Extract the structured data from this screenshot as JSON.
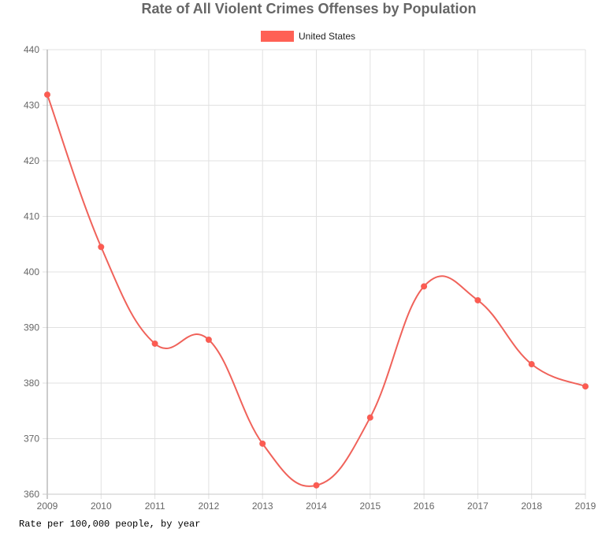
{
  "chart_data": {
    "type": "line",
    "title": "Rate of All Violent Crimes Offenses by Population",
    "x": [
      "2009",
      "2010",
      "2011",
      "2012",
      "2013",
      "2014",
      "2015",
      "2016",
      "2017",
      "2018",
      "2019"
    ],
    "series": [
      {
        "name": "United States",
        "color": "#f0625a",
        "values": [
          431.9,
          404.5,
          387.1,
          387.8,
          369.1,
          361.6,
          373.8,
          397.4,
          394.9,
          383.4,
          379.4
        ]
      }
    ],
    "ylim": [
      360,
      440
    ],
    "yticks": [
      "440",
      "430",
      "420",
      "410",
      "400",
      "390",
      "380",
      "370",
      "360"
    ],
    "xlabel": "",
    "ylabel": "",
    "grid": true,
    "legend_position": "top-center",
    "caption": "Rate per 100,000 people, by year"
  }
}
